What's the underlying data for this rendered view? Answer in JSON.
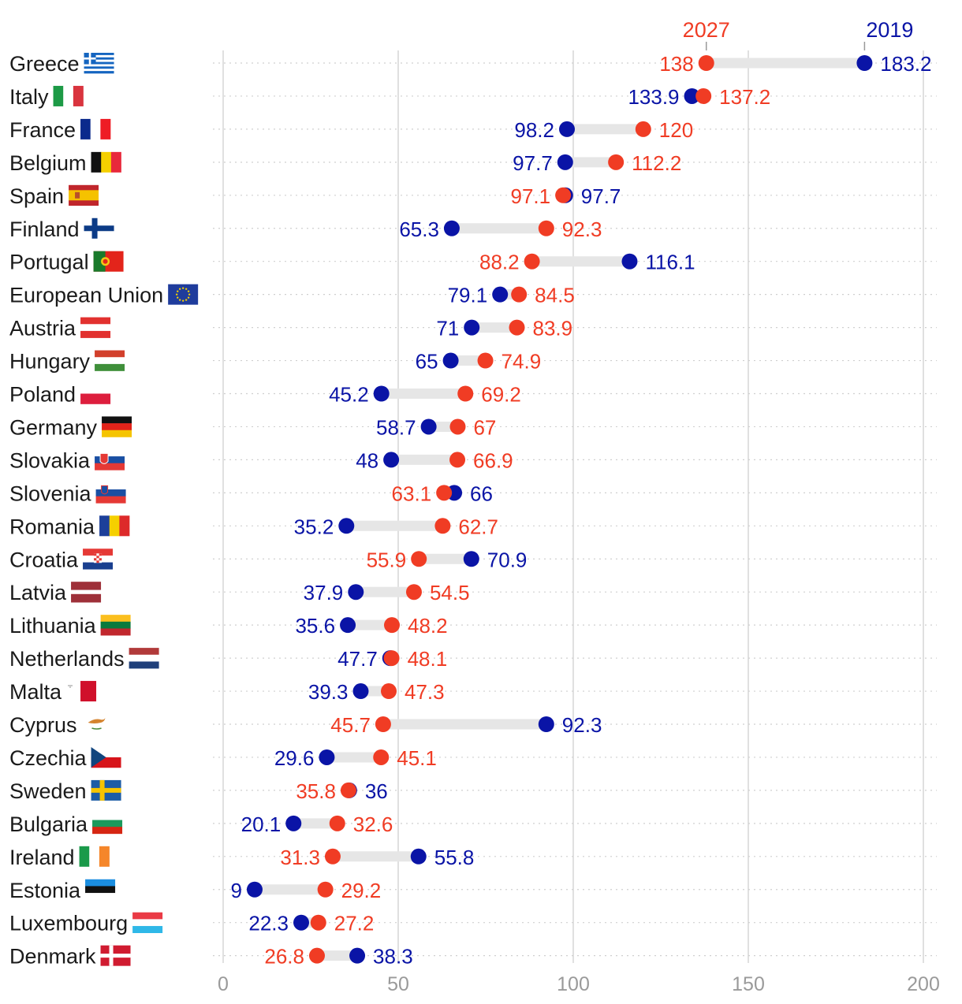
{
  "colors": {
    "y2027": "#f03c24",
    "y2019": "#0a14a6",
    "connector": "#e6e6e6",
    "grid_major": "#d6d6d6",
    "grid_minor": "#cfcfcf",
    "axis_text": "#9a9a9a",
    "label_text": "#1a1a1a"
  },
  "chart_data": {
    "type": "dumbbell",
    "x_ticks": [
      0,
      50,
      100,
      150,
      200
    ],
    "xlim": [
      0,
      200
    ],
    "legend": {
      "year_a": "2027",
      "year_b": "2019"
    },
    "series": [
      {
        "name": "2019",
        "color": "#0a14a6"
      },
      {
        "name": "2027",
        "color": "#f03c24"
      }
    ],
    "rows": [
      {
        "country": "Greece",
        "flag": "greece-flag-icon",
        "v2019": 183.2,
        "v2027": 138,
        "l2019": "183.2",
        "l2027": "138"
      },
      {
        "country": "Italy",
        "flag": "italy-flag-icon",
        "v2019": 133.9,
        "v2027": 137.2,
        "l2019": "133.9",
        "l2027": "137.2"
      },
      {
        "country": "France",
        "flag": "france-flag-icon",
        "v2019": 98.2,
        "v2027": 120,
        "l2019": "98.2",
        "l2027": "120"
      },
      {
        "country": "Belgium",
        "flag": "belgium-flag-icon",
        "v2019": 97.7,
        "v2027": 112.2,
        "l2019": "97.7",
        "l2027": "112.2"
      },
      {
        "country": "Spain",
        "flag": "spain-flag-icon",
        "v2019": 97.7,
        "v2027": 97.1,
        "l2019": "97.7",
        "l2027": "97.1"
      },
      {
        "country": "Finland",
        "flag": "finland-flag-icon",
        "v2019": 65.3,
        "v2027": 92.3,
        "l2019": "65.3",
        "l2027": "92.3"
      },
      {
        "country": "Portugal",
        "flag": "portugal-flag-icon",
        "v2019": 116.1,
        "v2027": 88.2,
        "l2019": "116.1",
        "l2027": "88.2"
      },
      {
        "country": "European Union",
        "flag": "eu-flag-icon",
        "v2019": 79.1,
        "v2027": 84.5,
        "l2019": "79.1",
        "l2027": "84.5"
      },
      {
        "country": "Austria",
        "flag": "austria-flag-icon",
        "v2019": 71,
        "v2027": 83.9,
        "l2019": "71",
        "l2027": "83.9"
      },
      {
        "country": "Hungary",
        "flag": "hungary-flag-icon",
        "v2019": 65,
        "v2027": 74.9,
        "l2019": "65",
        "l2027": "74.9"
      },
      {
        "country": "Poland",
        "flag": "poland-flag-icon",
        "v2019": 45.2,
        "v2027": 69.2,
        "l2019": "45.2",
        "l2027": "69.2"
      },
      {
        "country": "Germany",
        "flag": "germany-flag-icon",
        "v2019": 58.7,
        "v2027": 67,
        "l2019": "58.7",
        "l2027": "67"
      },
      {
        "country": "Slovakia",
        "flag": "slovakia-flag-icon",
        "v2019": 48,
        "v2027": 66.9,
        "l2019": "48",
        "l2027": "66.9"
      },
      {
        "country": "Slovenia",
        "flag": "slovenia-flag-icon",
        "v2019": 66,
        "v2027": 63.1,
        "l2019": "66",
        "l2027": "63.1"
      },
      {
        "country": "Romania",
        "flag": "romania-flag-icon",
        "v2019": 35.2,
        "v2027": 62.7,
        "l2019": "35.2",
        "l2027": "62.7"
      },
      {
        "country": "Croatia",
        "flag": "croatia-flag-icon",
        "v2019": 70.9,
        "v2027": 55.9,
        "l2019": "70.9",
        "l2027": "55.9"
      },
      {
        "country": "Latvia",
        "flag": "latvia-flag-icon",
        "v2019": 37.9,
        "v2027": 54.5,
        "l2019": "37.9",
        "l2027": "54.5"
      },
      {
        "country": "Lithuania",
        "flag": "lithuania-flag-icon",
        "v2019": 35.6,
        "v2027": 48.2,
        "l2019": "35.6",
        "l2027": "48.2"
      },
      {
        "country": "Netherlands",
        "flag": "netherlands-flag-icon",
        "v2019": 47.7,
        "v2027": 48.1,
        "l2019": "47.7",
        "l2027": "48.1"
      },
      {
        "country": "Malta",
        "flag": "malta-flag-icon",
        "v2019": 39.3,
        "v2027": 47.3,
        "l2019": "39.3",
        "l2027": "47.3"
      },
      {
        "country": "Cyprus",
        "flag": "cyprus-flag-icon",
        "v2019": 92.3,
        "v2027": 45.7,
        "l2019": "92.3",
        "l2027": "45.7"
      },
      {
        "country": "Czechia",
        "flag": "czechia-flag-icon",
        "v2019": 29.6,
        "v2027": 45.1,
        "l2019": "29.6",
        "l2027": "45.1"
      },
      {
        "country": "Sweden",
        "flag": "sweden-flag-icon",
        "v2019": 36,
        "v2027": 35.8,
        "l2019": "36",
        "l2027": "35.8"
      },
      {
        "country": "Bulgaria",
        "flag": "bulgaria-flag-icon",
        "v2019": 20.1,
        "v2027": 32.6,
        "l2019": "20.1",
        "l2027": "32.6"
      },
      {
        "country": "Ireland",
        "flag": "ireland-flag-icon",
        "v2019": 55.8,
        "v2027": 31.3,
        "l2019": "55.8",
        "l2027": "31.3"
      },
      {
        "country": "Estonia",
        "flag": "estonia-flag-icon",
        "v2019": 9,
        "v2027": 29.2,
        "l2019": "9",
        "l2027": "29.2"
      },
      {
        "country": "Luxembourg",
        "flag": "luxembourg-flag-icon",
        "v2019": 22.3,
        "v2027": 27.2,
        "l2019": "22.3",
        "l2027": "27.2"
      },
      {
        "country": "Denmark",
        "flag": "denmark-flag-icon",
        "v2019": 38.3,
        "v2027": 26.8,
        "l2019": "38.3",
        "l2027": "26.8"
      }
    ]
  }
}
